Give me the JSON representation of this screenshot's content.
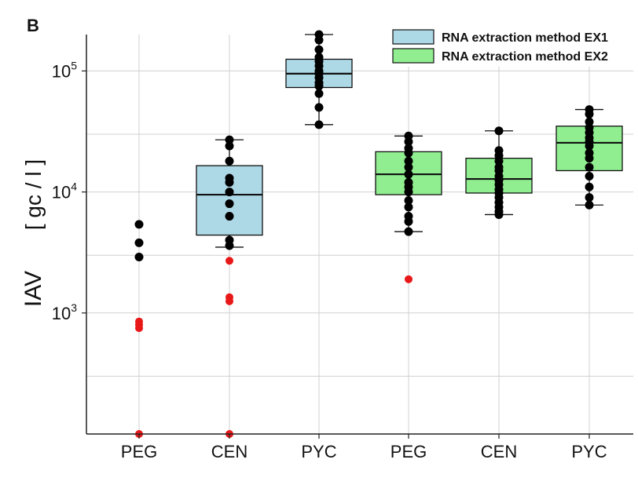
{
  "panel_label": "B",
  "chart_data": {
    "type": "box",
    "scale": "log",
    "ylim": [
      100,
      200000
    ],
    "y_ticks": [
      {
        "base": "10",
        "exp": "3",
        "value": 1000
      },
      {
        "base": "10",
        "exp": "4",
        "value": 10000
      },
      {
        "base": "10",
        "exp": "5",
        "value": 100000
      }
    ],
    "ylabel_main": "IAV",
    "ylabel_unit": "[ gc / l ]",
    "grid": true,
    "legend_position": "top-right",
    "categories": [
      "PEG",
      "CEN",
      "PYC",
      "PEG",
      "CEN",
      "PYC"
    ],
    "legend": [
      {
        "label": "RNA extraction method EX1",
        "color": "#add8e6"
      },
      {
        "label": "RNA extraction method EX2",
        "color": "#90ee90"
      }
    ],
    "groups": [
      {
        "category": "PEG",
        "method": 0,
        "box": null,
        "points": [
          5400,
          3800,
          2900
        ],
        "red_points": [
          850,
          800,
          750,
          100
        ]
      },
      {
        "category": "CEN",
        "method": 0,
        "box": {
          "q1": 4400,
          "median": 9500,
          "q3": 16500,
          "whisker_low": 3500,
          "whisker_high": 27000
        },
        "points": [
          27000,
          24000,
          18000,
          13000,
          12000,
          10000,
          8000,
          6300,
          4000,
          3600
        ],
        "red_points": [
          2700,
          1350,
          1250,
          100
        ]
      },
      {
        "category": "PYC",
        "method": 0,
        "box": {
          "q1": 73000,
          "median": 95000,
          "q3": 125000,
          "whisker_low": 36000,
          "whisker_high": 200000
        },
        "points": [
          200000,
          180000,
          150000,
          130000,
          120000,
          110000,
          100000,
          95000,
          88000,
          80000,
          75000,
          65000,
          50000,
          36000
        ],
        "red_points": []
      },
      {
        "category": "PEG",
        "method": 1,
        "box": {
          "q1": 9500,
          "median": 14000,
          "q3": 21500,
          "whisker_low": 4700,
          "whisker_high": 29000
        },
        "points": [
          29000,
          26000,
          23000,
          21000,
          18000,
          16000,
          14000,
          12000,
          11000,
          10000,
          8500,
          7500,
          6300,
          5700,
          4700
        ],
        "red_points": [
          1900
        ]
      },
      {
        "category": "CEN",
        "method": 1,
        "box": {
          "q1": 9800,
          "median": 12800,
          "q3": 19000,
          "whisker_low": 6500,
          "whisker_high": 32000
        },
        "points": [
          32000,
          22000,
          20000,
          18000,
          16000,
          15000,
          13500,
          12500,
          11500,
          10500,
          9800,
          9000,
          8200,
          7500,
          6900,
          6500
        ],
        "red_points": []
      },
      {
        "category": "PYC",
        "method": 1,
        "box": {
          "q1": 15000,
          "median": 25500,
          "q3": 35000,
          "whisker_low": 7800,
          "whisker_high": 48000
        },
        "points": [
          48000,
          44000,
          38000,
          34000,
          31000,
          28000,
          26000,
          24000,
          21000,
          19000,
          16000,
          13500,
          11000,
          9000,
          7800
        ],
        "red_points": []
      }
    ]
  }
}
